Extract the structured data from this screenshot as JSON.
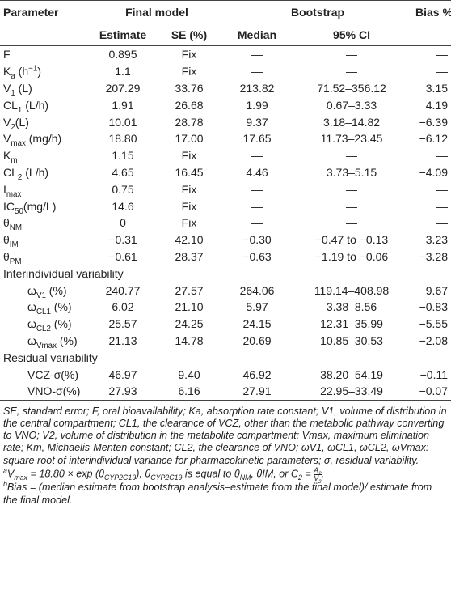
{
  "table": {
    "header_top": {
      "parameter": "Parameter",
      "final_model": "Final model",
      "bootstrap": "Bootstrap",
      "bias": "Bias %"
    },
    "header_sub": {
      "estimate": "Estimate",
      "se": "SE (%)",
      "median": "Median",
      "ci": "95% CI"
    },
    "rows": [
      {
        "param": [
          {
            "t": "F"
          }
        ],
        "cells": [
          "0.895",
          "Fix",
          "—",
          "—",
          "—"
        ]
      },
      {
        "param": [
          {
            "t": "K"
          },
          {
            "t": "a",
            "pos": "sub"
          },
          {
            "t": " (h"
          },
          {
            "t": "−1",
            "pos": "sup"
          },
          {
            "t": ")"
          }
        ],
        "cells": [
          "1.1",
          "Fix",
          "—",
          "—",
          "—"
        ]
      },
      {
        "param": [
          {
            "t": "V"
          },
          {
            "t": "1",
            "pos": "sub"
          },
          {
            "t": " (L)"
          }
        ],
        "cells": [
          "207.29",
          "33.76",
          "213.82",
          "71.52–356.12",
          "3.15"
        ]
      },
      {
        "param": [
          {
            "t": "CL"
          },
          {
            "t": "1",
            "pos": "sub"
          },
          {
            "t": " (L/h)"
          }
        ],
        "cells": [
          "1.91",
          "26.68",
          "1.99",
          "0.67–3.33",
          "4.19"
        ]
      },
      {
        "param": [
          {
            "t": "V"
          },
          {
            "t": "2",
            "pos": "sub"
          },
          {
            "t": "(L)"
          }
        ],
        "cells": [
          "10.01",
          "28.78",
          "9.37",
          "3.18–14.82",
          "−6.39"
        ]
      },
      {
        "param": [
          {
            "t": "V"
          },
          {
            "t": "max",
            "pos": "sub"
          },
          {
            "t": " (mg/h)"
          }
        ],
        "cells": [
          "18.80",
          "17.00",
          "17.65",
          "11.73–23.45",
          "−6.12"
        ]
      },
      {
        "param": [
          {
            "t": "K"
          },
          {
            "t": "m",
            "pos": "sub"
          }
        ],
        "cells": [
          "1.15",
          "Fix",
          "—",
          "—",
          "—"
        ]
      },
      {
        "param": [
          {
            "t": "CL"
          },
          {
            "t": "2",
            "pos": "sub"
          },
          {
            "t": " (L/h)"
          }
        ],
        "cells": [
          "4.65",
          "16.45",
          "4.46",
          "3.73–5.15",
          "−4.09"
        ]
      },
      {
        "param": [
          {
            "t": "I"
          },
          {
            "t": "max",
            "pos": "sub"
          }
        ],
        "cells": [
          "0.75",
          "Fix",
          "—",
          "—",
          "—"
        ]
      },
      {
        "param": [
          {
            "t": "IC"
          },
          {
            "t": "50",
            "pos": "sub"
          },
          {
            "t": "(mg/L)"
          }
        ],
        "cells": [
          "14.6",
          "Fix",
          "—",
          "—",
          "—"
        ]
      },
      {
        "param": [
          {
            "t": "θ"
          },
          {
            "t": "NM",
            "pos": "sub"
          }
        ],
        "cells": [
          "0",
          "Fix",
          "—",
          "—",
          "—"
        ]
      },
      {
        "param": [
          {
            "t": "θ"
          },
          {
            "t": "IM",
            "pos": "sub"
          }
        ],
        "cells": [
          "−0.31",
          "42.10",
          "−0.30",
          "−0.47 to −0.13",
          "3.23"
        ]
      },
      {
        "param": [
          {
            "t": "θ"
          },
          {
            "t": "PM",
            "pos": "sub"
          }
        ],
        "cells": [
          "−0.61",
          "28.37",
          "−0.63",
          "−1.19 to −0.06",
          "−3.28"
        ]
      },
      {
        "section": "Interindividual variability"
      },
      {
        "indent": true,
        "param": [
          {
            "t": "ω"
          },
          {
            "t": "V1",
            "pos": "sub"
          },
          {
            "t": " (%)"
          }
        ],
        "cells": [
          "240.77",
          "27.57",
          "264.06",
          "119.14–408.98",
          "9.67"
        ]
      },
      {
        "indent": true,
        "param": [
          {
            "t": "ω"
          },
          {
            "t": "CL1",
            "pos": "sub"
          },
          {
            "t": " (%)"
          }
        ],
        "cells": [
          "6.02",
          "21.10",
          "5.97",
          "3.38–8.56",
          "−0.83"
        ]
      },
      {
        "indent": true,
        "param": [
          {
            "t": "ω"
          },
          {
            "t": "CL2",
            "pos": "sub"
          },
          {
            "t": " (%)"
          }
        ],
        "cells": [
          "25.57",
          "24.25",
          "24.15",
          "12.31–35.99",
          "−5.55"
        ]
      },
      {
        "indent": true,
        "param": [
          {
            "t": "ω"
          },
          {
            "t": "Vmax",
            "pos": "sub"
          },
          {
            "t": " (%)"
          }
        ],
        "cells": [
          "21.13",
          "14.78",
          "20.69",
          "10.85–30.53",
          "−2.08"
        ]
      },
      {
        "section": "Residual variability"
      },
      {
        "indent": true,
        "param": [
          {
            "t": "VCZ-σ(%)"
          }
        ],
        "cells": [
          "46.97",
          "9.40",
          "46.92",
          "38.20–54.19",
          "−0.11"
        ]
      },
      {
        "indent": true,
        "param": [
          {
            "t": "VNO-σ(%)"
          }
        ],
        "cells": [
          "27.93",
          "6.16",
          "27.91",
          "22.95–33.49",
          "−0.07"
        ]
      }
    ]
  },
  "footnotes": [
    [
      {
        "t": "SE, standard error; F, oral bioavailability; Ka, absorption rate constant; V1, volume of distribution in the central compartment; CL1, the clearance of VCZ, other than the metabolic pathway converting to VNO; V2, volume of distribution in the metabolite compartment; Vmax, maximum elimination rate; Km, Michaelis-Menten constant; CL2, the clearance of VNO; ωV1, ωCL1, ωCL2, ωVmax: square root of interindividual variance for pharmacokinetic parameters; σ, residual variability."
      }
    ],
    [
      {
        "t": "a",
        "pos": "sup"
      },
      {
        "t": "V"
      },
      {
        "t": "max",
        "pos": "sub"
      },
      {
        "t": " = 18.80 × exp (θ"
      },
      {
        "t": "CYP2C19",
        "pos": "sub"
      },
      {
        "t": "), θ"
      },
      {
        "t": "CYP2C19",
        "pos": "sub"
      },
      {
        "t": " is equal to θ"
      },
      {
        "t": "NM",
        "pos": "sub"
      },
      {
        "t": ", θIM, or C"
      },
      {
        "t": "2",
        "pos": "sub"
      },
      {
        "t": " = "
      },
      {
        "num": [
          {
            "t": "A"
          },
          {
            "t": "2",
            "pos": "sub"
          }
        ],
        "den": [
          {
            "t": "V"
          },
          {
            "t": "2",
            "pos": "sub"
          }
        ]
      },
      {
        "t": "."
      }
    ],
    [
      {
        "t": "b",
        "pos": "sup"
      },
      {
        "t": "Bias = (median estimate from bootstrap analysis–estimate from the final model)/ estimate from the final model."
      }
    ]
  ]
}
